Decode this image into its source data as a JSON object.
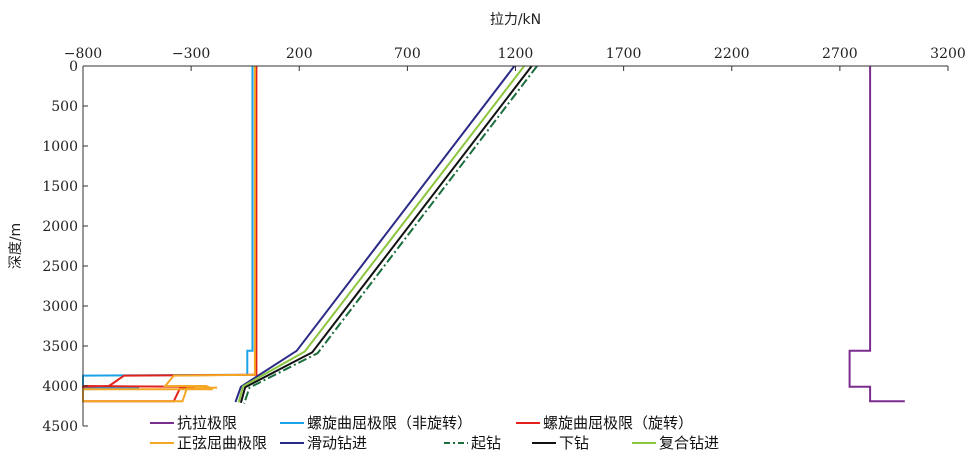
{
  "chart_data": {
    "type": "line",
    "title": "",
    "xlabel": "拉力/kN",
    "ylabel": "深度/m",
    "xlim": [
      -800,
      3200
    ],
    "ylim": [
      4500,
      0
    ],
    "x_axis_position": "top",
    "y_axis_inverted": true,
    "xticks": [
      -800,
      -300,
      200,
      700,
      1200,
      1700,
      2200,
      2700,
      3200
    ],
    "xtick_labels": [
      "−800",
      "−300",
      "200",
      "700",
      "1200",
      "1700",
      "2200",
      "2700",
      "3200"
    ],
    "yticks": [
      0,
      500,
      1000,
      1500,
      2000,
      2500,
      3000,
      3500,
      4000,
      4500
    ],
    "ytick_labels": [
      "0",
      "500",
      "1000",
      "1500",
      "2000",
      "2500",
      "3000",
      "3500",
      "4000",
      "4500"
    ],
    "grid": false,
    "legend_position": "bottom",
    "series": [
      {
        "name": "抗拉极限",
        "color": "#7b2d8e",
        "dash": "solid",
        "points": [
          [
            2840,
            0
          ],
          [
            2840,
            3560
          ],
          [
            2745,
            3560
          ],
          [
            2745,
            4010
          ],
          [
            2840,
            4010
          ],
          [
            2840,
            4190
          ],
          [
            3000,
            4190
          ]
        ]
      },
      {
        "name": "螺旋曲屈极限（非旋转）",
        "color": "#1aa3e8",
        "dash": "solid",
        "points": [
          [
            -16,
            0
          ],
          [
            -16,
            3560
          ],
          [
            -40,
            3560
          ],
          [
            -40,
            3860
          ],
          [
            -800,
            3870
          ],
          [
            -800,
            4000
          ],
          [
            -800,
            4020
          ],
          [
            -540,
            4030
          ],
          [
            -800,
            4040
          ]
        ]
      },
      {
        "name": "螺旋曲屈极限（旋转）",
        "color": "#e32119",
        "dash": "solid",
        "points": [
          [
            2,
            0
          ],
          [
            2,
            3860
          ],
          [
            -610,
            3870
          ],
          [
            -680,
            4000
          ],
          [
            -800,
            4010
          ],
          [
            -800,
            4030
          ],
          [
            -800,
            4190
          ],
          [
            -380,
            4190
          ],
          [
            -350,
            4020
          ],
          [
            -280,
            4010
          ],
          [
            -800,
            4000
          ]
        ]
      },
      {
        "name": "正弦屈曲极限",
        "color": "#f5a623",
        "dash": "solid",
        "points": [
          [
            -5,
            0
          ],
          [
            -5,
            3860
          ],
          [
            -380,
            3870
          ],
          [
            -420,
            4000
          ],
          [
            -230,
            4000
          ],
          [
            -200,
            4040
          ],
          [
            -800,
            4040
          ],
          [
            -800,
            4190
          ],
          [
            -340,
            4190
          ],
          [
            -320,
            4030
          ],
          [
            -180,
            4020
          ]
        ]
      },
      {
        "name": "滑动钻进",
        "color": "#2b2a86",
        "dash": "solid",
        "points": [
          [
            1195,
            0
          ],
          [
            188,
            3560
          ],
          [
            -70,
            4010
          ],
          [
            -95,
            4200
          ]
        ]
      },
      {
        "name": "起钻",
        "color": "#1b6e3d",
        "dash": "dashdot",
        "points": [
          [
            1300,
            0
          ],
          [
            285,
            3590
          ],
          [
            -30,
            4020
          ],
          [
            -55,
            4220
          ]
        ]
      },
      {
        "name": "下钻",
        "color": "#111111",
        "dash": "solid",
        "points": [
          [
            1275,
            0
          ],
          [
            260,
            3580
          ],
          [
            -50,
            4015
          ],
          [
            -70,
            4210
          ]
        ]
      },
      {
        "name": "复合钻进",
        "color": "#8cc63f",
        "dash": "solid",
        "points": [
          [
            1240,
            0
          ],
          [
            225,
            3570
          ],
          [
            -60,
            4005
          ],
          [
            -80,
            4205
          ]
        ]
      }
    ]
  }
}
